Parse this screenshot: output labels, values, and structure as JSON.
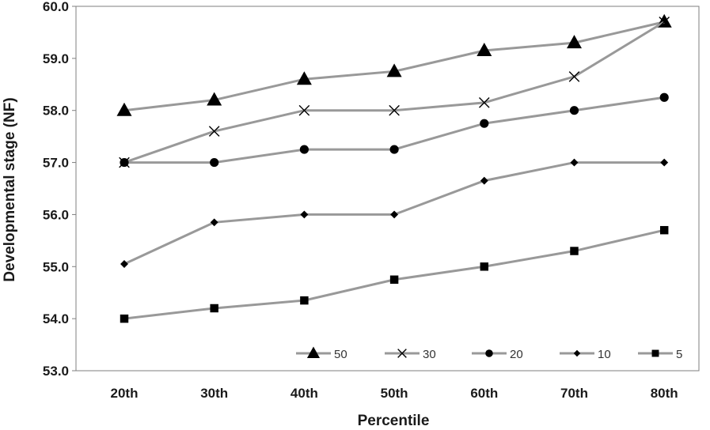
{
  "chart_data": {
    "type": "line",
    "title": "",
    "xlabel": "Percentile",
    "ylabel": "Developmental stage (NF)",
    "categories": [
      "20th",
      "30th",
      "40th",
      "50th",
      "60th",
      "70th",
      "80th"
    ],
    "ylim": [
      53.0,
      60.0
    ],
    "yticks": [
      "53.0",
      "54.0",
      "55.0",
      "56.0",
      "57.0",
      "58.0",
      "59.0",
      "60.0"
    ],
    "grid": false,
    "legend_position": "bottom-right",
    "line_color": "#999999",
    "marker_color": "#000000",
    "series": [
      {
        "name": "50",
        "marker": "triangle",
        "values": [
          58.0,
          58.2,
          58.6,
          58.75,
          59.15,
          59.3,
          59.7
        ]
      },
      {
        "name": "30",
        "marker": "x",
        "values": [
          57.0,
          57.6,
          58.0,
          58.0,
          58.15,
          58.65,
          59.7
        ]
      },
      {
        "name": "20",
        "marker": "circle",
        "values": [
          57.0,
          57.0,
          57.25,
          57.25,
          57.75,
          58.0,
          58.25
        ]
      },
      {
        "name": "10",
        "marker": "diamond",
        "values": [
          55.05,
          55.85,
          56.0,
          56.0,
          56.65,
          57.0,
          57.0
        ]
      },
      {
        "name": "5",
        "marker": "square",
        "values": [
          54.0,
          54.2,
          54.35,
          54.75,
          55.0,
          55.3,
          55.7
        ]
      }
    ]
  }
}
